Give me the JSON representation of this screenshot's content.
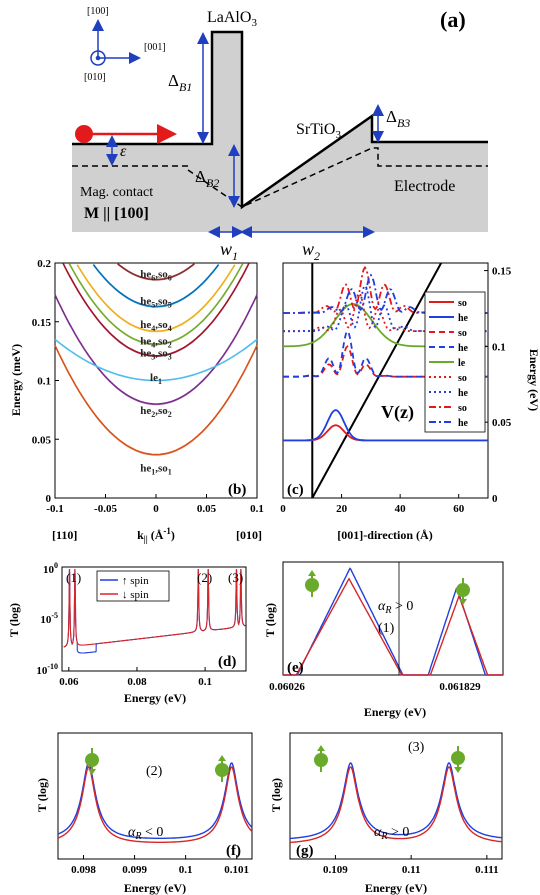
{
  "schematic": {
    "panel_label": "(a)",
    "axes": [
      "[100]",
      "[001]",
      "[010]"
    ],
    "laalo3": "LaAlO",
    "laalo3_sub": "3",
    "srtio3": "SrTiO",
    "srtio3_sub": "3",
    "delta_b1": "Δ",
    "delta_b1_sub": "B1",
    "delta_b2": "Δ",
    "delta_b2_sub": "B2",
    "delta_b3": "Δ",
    "delta_b3_sub": "B3",
    "epsilon": "ε",
    "mag_contact": "Mag. contact",
    "magnetization": "M || [100]",
    "electrode": "Electrode",
    "w1": "w",
    "w1_sub": "1",
    "w2": "w",
    "w2_sub": "2",
    "colors": {
      "fill": "#d0d0d0",
      "arrow": "#e31a1c",
      "dim": "#1f3fbf"
    }
  },
  "chart_data": [
    {
      "panel": "(b)",
      "type": "line",
      "xlabel": "k|| (Å⁻¹)",
      "ylabel": "Energy (meV)",
      "xlim": [
        -0.1,
        0.1
      ],
      "ylim": [
        0,
        0.2
      ],
      "xticks": [
        -0.1,
        -0.05,
        0,
        0.05,
        0.1
      ],
      "xtick_labels": [
        "-0.1",
        "-0.05",
        "0",
        "0.05",
        "0.1"
      ],
      "yticks": [
        0,
        0.05,
        0.1,
        0.15,
        0.2
      ],
      "ytick_labels": [
        "0",
        "0.05",
        "0.1",
        "0.15",
        "0.2"
      ],
      "direction_labels": [
        "[110]",
        "[010]"
      ],
      "series": [
        {
          "name": "he1,so1",
          "e0": 0.037,
          "curv": 9.3,
          "color": "#d95319"
        },
        {
          "name": "he2,so2",
          "e0": 0.08,
          "curv": 9.3,
          "color": "#7e2f8e"
        },
        {
          "name": "le1",
          "e0": 0.1,
          "curv": 3.5,
          "color": "#4dbeee"
        },
        {
          "name": "he3,so3",
          "e0": 0.121,
          "curv": 9.3,
          "color": "#a2142f"
        },
        {
          "name": "he4,so2",
          "e0": 0.131,
          "curv": 9.3,
          "color": "#77ac30"
        },
        {
          "name": "he4,so4",
          "e0": 0.142,
          "curv": 9.3,
          "color": "#edb120"
        },
        {
          "name": "he5,so5",
          "e0": 0.163,
          "curv": 9.3,
          "color": "#0072bd"
        },
        {
          "name": "he6,so6",
          "e0": 0.186,
          "curv": 9.3,
          "color": "#8c2d2d"
        }
      ],
      "level_labels": [
        {
          "base": "he",
          "s1": "6",
          "mid": ",so",
          "s2": "6"
        },
        {
          "base": "he",
          "s1": "5",
          "mid": ",so",
          "s2": "5"
        },
        {
          "base": "he",
          "s1": "4",
          "mid": ",so",
          "s2": "4"
        },
        {
          "base": "he",
          "s1": "4",
          "mid": ",so",
          "s2": "2"
        },
        {
          "base": "he",
          "s1": "3",
          "mid": ",so",
          "s2": "3"
        },
        {
          "base": "le",
          "s1": "1",
          "mid": "",
          "s2": ""
        },
        {
          "base": "he",
          "s1": "2",
          "mid": ",so",
          "s2": "2"
        },
        {
          "base": "he",
          "s1": "1",
          "mid": ",so",
          "s2": "1"
        }
      ]
    },
    {
      "panel": "(c)",
      "type": "line",
      "xlabel": "[001]-direction (Å)",
      "ylabel": "Energy (eV)",
      "xlim": [
        0,
        70
      ],
      "ylim": [
        0,
        0.155
      ],
      "xticks": [
        0,
        20,
        40,
        60
      ],
      "yticks": [
        0,
        0.05,
        0.1,
        0.15
      ],
      "potential_label": "V(z)",
      "legend": [
        {
          "name": "so",
          "color": "#e31a1c",
          "dash": "solid"
        },
        {
          "name": "he",
          "color": "#1f3fe0",
          "dash": "solid"
        },
        {
          "name": "so",
          "color": "#e31a1c",
          "dash": "dashed"
        },
        {
          "name": "he",
          "color": "#1f3fe0",
          "dash": "dashed"
        },
        {
          "name": "le",
          "color": "#6aaa2a",
          "dash": "solid"
        },
        {
          "name": "so",
          "color": "#e31a1c",
          "dash": "dotted"
        },
        {
          "name": "he",
          "color": "#1f3fe0",
          "dash": "dotted"
        },
        {
          "name": "so",
          "color": "#e31a1c",
          "dash": "dashdot"
        },
        {
          "name": "he",
          "color": "#1f3fe0",
          "dash": "dashdot"
        }
      ]
    },
    {
      "panel": "(d)",
      "type": "line",
      "xlabel": "Energy (eV)",
      "ylabel": "T (log)",
      "xlim": [
        0.058,
        0.112
      ],
      "xticks": [
        0.06,
        0.08,
        0.1
      ],
      "yticks": [
        "10^0",
        "10^-5",
        "10^-10"
      ],
      "legend": [
        "↑ spin",
        "↓ spin"
      ],
      "annotations": [
        "(1)",
        "(2)",
        "(3)"
      ],
      "peaks": [
        0.0602,
        0.0618,
        0.098,
        0.1009,
        0.1092,
        0.1105
      ]
    },
    {
      "panel": "(e)",
      "type": "line",
      "xlabel": "Energy (eV)",
      "ylabel": "T (log)",
      "xtick_labels": [
        "0.06026",
        "0.061829"
      ],
      "annotation": "(1)",
      "alpha_label": "α_R > 0"
    },
    {
      "panel": "(f)",
      "type": "line",
      "xlabel": "Energy (eV)",
      "ylabel": "T (log)",
      "xlim": [
        0.0975,
        0.1013
      ],
      "xticks": [
        0.098,
        0.099,
        0.1,
        0.101
      ],
      "annotation": "(2)",
      "alpha_label": "α_R < 0",
      "peaks": [
        0.0981,
        0.1009
      ]
    },
    {
      "panel": "(g)",
      "type": "line",
      "xlabel": "Energy (eV)",
      "ylabel": "T (log)",
      "xlim": [
        0.1084,
        0.1112
      ],
      "xticks": [
        0.109,
        0.11,
        0.111
      ],
      "annotation": "(3)",
      "alpha_label": "α_R > 0",
      "peaks": [
        0.1092,
        0.1105
      ]
    }
  ]
}
